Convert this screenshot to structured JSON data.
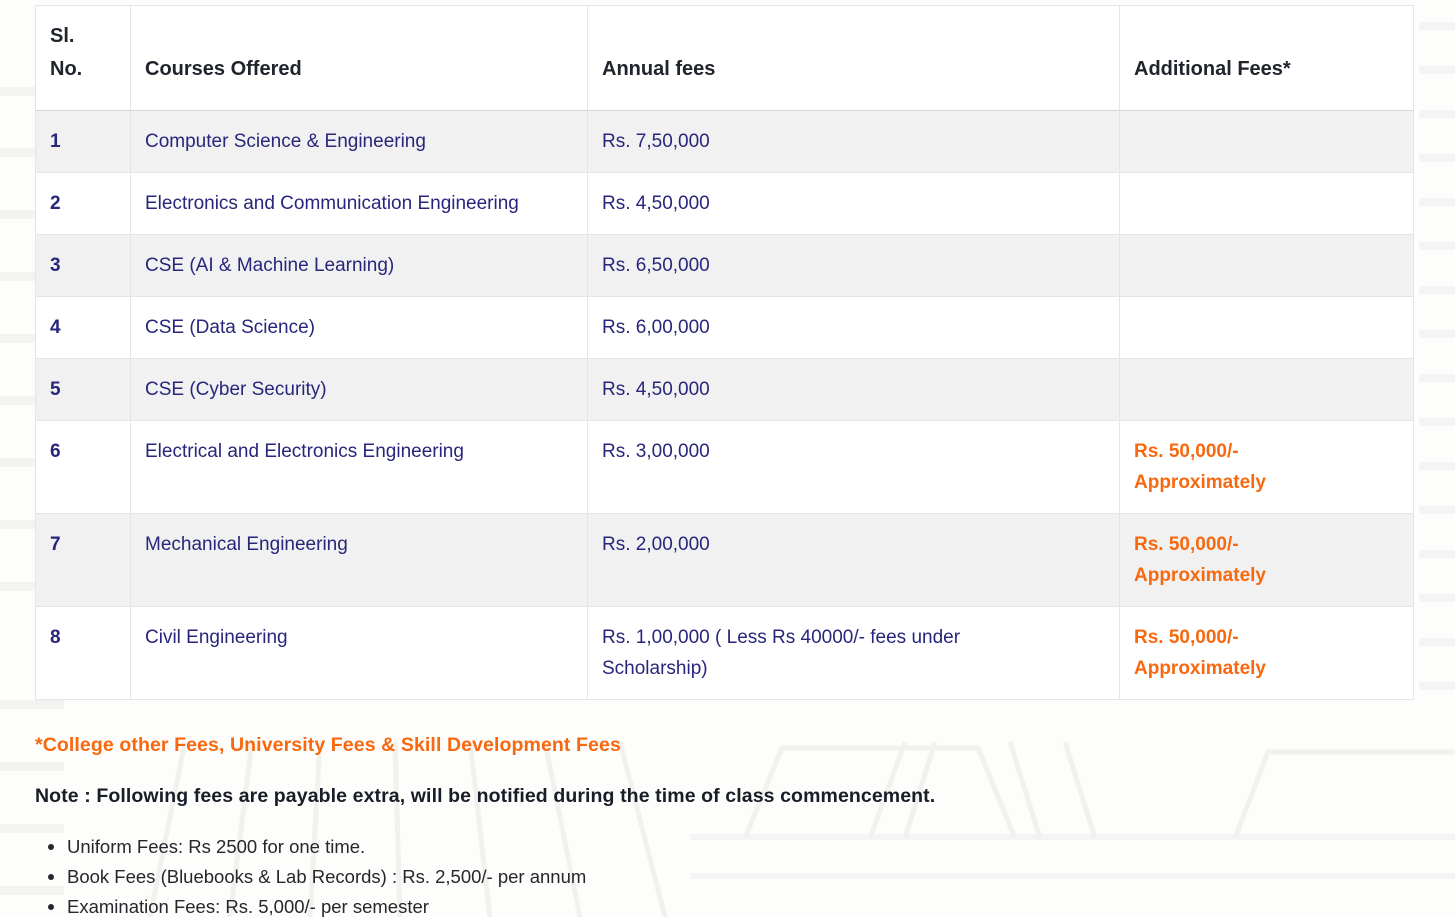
{
  "colors": {
    "accent_orange": "#F8690F",
    "body_navy": "#28267B",
    "heading_dark": "#20242C",
    "row_stripe_gray": "#F1F1F2",
    "border_gray": "#E4E5E9"
  },
  "table": {
    "headers": {
      "sl_no": "Sl. No.",
      "courses": "Courses Offered",
      "annual": "Annual fees",
      "additional": "Additional Fees*"
    },
    "rows": [
      {
        "no": "1",
        "course": "Computer Science & Engineering",
        "annual": "Rs. 7,50,000",
        "additional": ""
      },
      {
        "no": "2",
        "course": "Electronics and Communication Engineering",
        "annual": "Rs. 4,50,000",
        "additional": ""
      },
      {
        "no": "3",
        "course": "CSE (AI & Machine Learning)",
        "annual": "Rs. 6,50,000",
        "additional": ""
      },
      {
        "no": "4",
        "course": "CSE (Data Science)",
        "annual": "Rs. 6,00,000",
        "additional": ""
      },
      {
        "no": "5",
        "course": "CSE (Cyber Security)",
        "annual": "Rs. 4,50,000",
        "additional": ""
      },
      {
        "no": "6",
        "course": "Electrical and Electronics Engineering",
        "annual": "Rs. 3,00,000",
        "additional": "Rs. 50,000/- Approximately"
      },
      {
        "no": "7",
        "course": "Mechanical Engineering",
        "annual": "Rs. 2,00,000",
        "additional": "Rs. 50,000/- Approximately"
      },
      {
        "no": "8",
        "course": "Civil Engineering",
        "annual": "Rs. 1,00,000 ( Less Rs 40000/- fees under Scholarship)",
        "additional": "Rs. 50,000/- Approximately"
      }
    ]
  },
  "footnote": "*College other Fees, University Fees & Skill Development Fees",
  "note": "Note : Following fees are payable extra, will be notified during the time of class commencement.",
  "bullets": [
    "Uniform Fees: Rs 2500 for one time.",
    "Book Fees (Bluebooks & Lab Records) : Rs. 2,500/- per annum",
    "Examination Fees: Rs. 5,000/- per semester"
  ]
}
